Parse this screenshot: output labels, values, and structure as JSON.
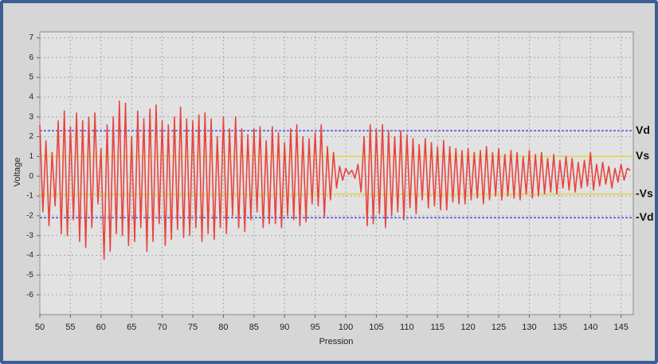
{
  "chart_data": {
    "type": "line",
    "x_label": "Pression",
    "y_label": "Voltage",
    "x": [
      50,
      50.5,
      51,
      51.5,
      52,
      52.5,
      53,
      53.5,
      54,
      54.5,
      55,
      55.5,
      56,
      56.5,
      57,
      57.5,
      58,
      58.5,
      59,
      59.5,
      60,
      60.5,
      61,
      61.5,
      62,
      62.5,
      63,
      63.5,
      64,
      64.5,
      65,
      65.5,
      66,
      66.5,
      67,
      67.5,
      68,
      68.5,
      69,
      69.5,
      70,
      70.5,
      71,
      71.5,
      72,
      72.5,
      73,
      73.5,
      74,
      74.5,
      75,
      75.5,
      76,
      76.5,
      77,
      77.5,
      78,
      78.5,
      79,
      79.5,
      80,
      80.5,
      81,
      81.5,
      82,
      82.5,
      83,
      83.5,
      84,
      84.5,
      85,
      85.5,
      86,
      86.5,
      87,
      87.5,
      88,
      88.5,
      89,
      89.5,
      90,
      90.5,
      91,
      91.5,
      92,
      92.5,
      93,
      93.5,
      94,
      94.5,
      95,
      95.5,
      96,
      96.5,
      97,
      97.5,
      98,
      98.5,
      99,
      99.5,
      100,
      100.5,
      101,
      101.5,
      102,
      102.5,
      103,
      103.5,
      104,
      104.5,
      105,
      105.5,
      106,
      106.5,
      107,
      107.5,
      108,
      108.5,
      109,
      109.5,
      110,
      110.5,
      111,
      111.5,
      112,
      112.5,
      113,
      113.5,
      114,
      114.5,
      115,
      115.5,
      116,
      116.5,
      117,
      117.5,
      118,
      118.5,
      119,
      119.5,
      120,
      120.5,
      121,
      121.5,
      122,
      122.5,
      123,
      123.5,
      124,
      124.5,
      125,
      125.5,
      126,
      126.5,
      127,
      127.5,
      128,
      128.5,
      129,
      129.5,
      130,
      130.5,
      131,
      131.5,
      132,
      132.5,
      133,
      133.5,
      134,
      134.5,
      135,
      135.5,
      136,
      136.5,
      137,
      137.5,
      138,
      138.5,
      139,
      139.5,
      140,
      140.5,
      141,
      141.5,
      142,
      142.5,
      143,
      143.5,
      144,
      144.5,
      145,
      145.5,
      146,
      146.5
    ],
    "values": [
      2.6,
      -1.8,
      1.8,
      -2.5,
      1.2,
      -1.5,
      2.8,
      -2.9,
      3.3,
      -3.0,
      2.5,
      -2.2,
      3.2,
      -3.3,
      2.8,
      -3.6,
      3.0,
      -2.6,
      3.2,
      -1.4,
      1.4,
      -4.2,
      2.6,
      -3.8,
      3.0,
      -2.9,
      3.8,
      -3.0,
      3.7,
      -3.5,
      2.0,
      -3.3,
      3.3,
      -2.6,
      2.9,
      -3.8,
      3.4,
      -3.3,
      3.6,
      -2.4,
      2.8,
      -3.5,
      2.6,
      -3.2,
      3.0,
      -2.7,
      3.5,
      -3.1,
      2.9,
      -3.0,
      2.8,
      -2.6,
      3.1,
      -3.3,
      3.2,
      -2.9,
      2.9,
      -3.2,
      2.0,
      -2.6,
      3.0,
      -2.9,
      2.4,
      -2.0,
      3.0,
      -2.6,
      2.4,
      -2.8,
      2.1,
      -2.2,
      2.4,
      -1.8,
      2.5,
      -2.6,
      1.8,
      -2.4,
      2.5,
      -2.4,
      2.2,
      -2.6,
      1.7,
      -2.0,
      2.4,
      -2.2,
      2.6,
      -2.5,
      2.0,
      -2.3,
      1.9,
      -1.4,
      2.2,
      -1.5,
      2.6,
      -2.1,
      1.5,
      -1.2,
      1.2,
      -0.6,
      0.5,
      -0.2,
      0.4,
      0.1,
      0.3,
      -0.1,
      0.6,
      -0.8,
      2.0,
      -2.5,
      2.6,
      -2.4,
      2.4,
      -1.9,
      2.6,
      -2.6,
      2.3,
      -2.0,
      2.0,
      -1.8,
      2.3,
      -2.2,
      2.1,
      -1.6,
      1.9,
      -1.9,
      1.6,
      -1.2,
      1.9,
      -1.6,
      1.7,
      -1.5,
      1.5,
      -1.7,
      1.8,
      -1.7,
      1.5,
      -1.3,
      1.4,
      -1.4,
      1.3,
      -1.4,
      1.4,
      -1.2,
      1.2,
      -1.1,
      1.3,
      -1.4,
      1.5,
      -1.2,
      1.2,
      -1.0,
      1.4,
      -1.2,
      1.1,
      -1.0,
      1.3,
      -1.1,
      1.2,
      -1.2,
      1.0,
      -0.9,
      1.3,
      -1.1,
      1.1,
      -1.0,
      1.2,
      -0.9,
      0.9,
      -0.8,
      1.1,
      -0.9,
      0.8,
      -0.6,
      1.0,
      -0.7,
      0.9,
      -0.8,
      0.7,
      -0.6,
      0.8,
      -0.5,
      1.2,
      -0.7,
      0.6,
      -0.5,
      0.7,
      -0.4,
      0.5,
      -0.6,
      0.4,
      -0.3,
      0.6,
      -0.2,
      0.4,
      0.3
    ],
    "color": "#e8443e",
    "xlim": [
      50,
      147
    ],
    "xticks": [
      50,
      55,
      60,
      65,
      70,
      75,
      80,
      85,
      90,
      95,
      100,
      105,
      110,
      115,
      120,
      125,
      130,
      135,
      140,
      145
    ],
    "ylim": [
      -7,
      7.3
    ],
    "yticks": [
      -6,
      -5,
      -4,
      -3,
      -2,
      -1,
      0,
      1,
      2,
      3,
      4,
      5,
      6,
      7
    ],
    "grid": true,
    "reference_lines": [
      {
        "label": "Vd",
        "value": 2.3,
        "color": "#4b4be6"
      },
      {
        "label": "Vs",
        "value": 1.0,
        "color": "#e2d24a"
      },
      {
        "label": "-Vs",
        "value": -0.9,
        "color": "#e2d24a"
      },
      {
        "label": "-Vd",
        "value": -2.1,
        "color": "#4b4be6"
      }
    ]
  }
}
